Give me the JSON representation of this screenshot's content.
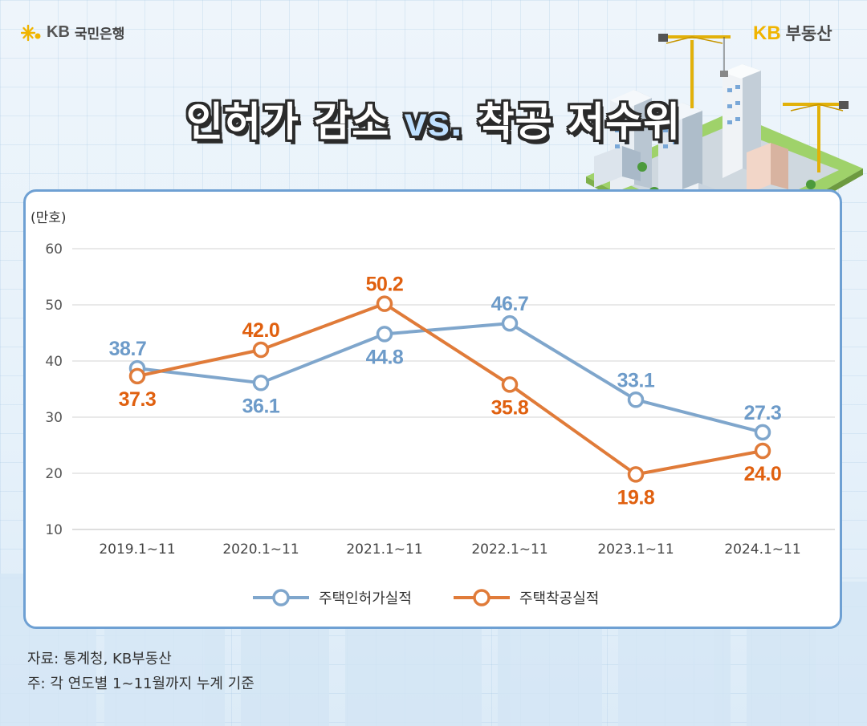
{
  "header": {
    "bank_logo_kb": "KB",
    "bank_logo_name": "국민은행",
    "realestate_logo_kb": "KB",
    "realestate_logo_name": "부동산",
    "title_left": "인허가 감소",
    "title_vs": "vs.",
    "title_right": "착공 저수위"
  },
  "colors": {
    "permits": "#7fa6cc",
    "permits_label": "#6d9bc9",
    "starts": "#e07b39",
    "starts_label": "#e0600f",
    "panel_border": "#6ea0d3"
  },
  "chart_data": {
    "type": "line",
    "unit_label": "(만호)",
    "categories": [
      "2019.1~11",
      "2020.1~11",
      "2021.1~11",
      "2022.1~11",
      "2023.1~11",
      "2024.1~11"
    ],
    "ylim": [
      10,
      60
    ],
    "yticks": [
      10,
      20,
      30,
      40,
      50,
      60
    ],
    "grid": true,
    "legend_position": "bottom-center",
    "series": [
      {
        "name": "주택인허가실적",
        "values": [
          38.7,
          36.1,
          44.8,
          46.7,
          33.1,
          27.3
        ],
        "labels": [
          "38.7",
          "36.1",
          "44.8",
          "46.7",
          "33.1",
          "27.3"
        ],
        "label_side": [
          "above",
          "below",
          "below",
          "above",
          "above",
          "above"
        ]
      },
      {
        "name": "주택착공실적",
        "values": [
          37.3,
          42.0,
          50.2,
          35.8,
          19.8,
          24.0
        ],
        "labels": [
          "37.3",
          "42.0",
          "50.2",
          "35.8",
          "19.8",
          "24.0"
        ],
        "label_side": [
          "below",
          "above",
          "above",
          "below",
          "below",
          "below"
        ]
      }
    ]
  },
  "footer": {
    "source": "자료: 통계청, KB부동산",
    "note": "주: 각 연도별 1~11월까지 누계 기준"
  }
}
